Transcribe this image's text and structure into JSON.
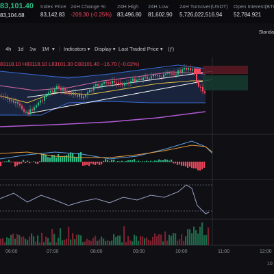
{
  "header": {
    "last_price": "83,101.40",
    "mark_price": "83,104.68",
    "stats": [
      {
        "label": "Index Price",
        "value": "83,142.83"
      },
      {
        "label": "24H Change %",
        "value": "-209.30 (-0.25%)"
      },
      {
        "label": "24H High",
        "value": "83,496.80"
      },
      {
        "label": "24H Low",
        "value": "81,602.90"
      },
      {
        "label": "24H Turnover(USDT)",
        "value": "5,726,022,516.94"
      },
      {
        "label": "Open Interest(BTC)",
        "value": "52,784.921"
      }
    ]
  },
  "toolbar": {
    "intervals": [
      "4h",
      "1d",
      "1w",
      "1M"
    ],
    "indicators": "Indicators",
    "display": "Display",
    "price_source": "Last Traded Price",
    "view_mode": "Standa"
  },
  "ohlc": "83118.10 H83118.10 L83101.30 C83101.40 −16.70 (−0.02%)",
  "time_axis": [
    "06:00",
    "07:00",
    "08:00",
    "09:00",
    "10:00",
    "11:00",
    "12:00"
  ],
  "time_axis_partial": "10",
  "colors": {
    "up": "#2ebd85",
    "down": "#f6465d",
    "accent": "#2ebd85"
  }
}
